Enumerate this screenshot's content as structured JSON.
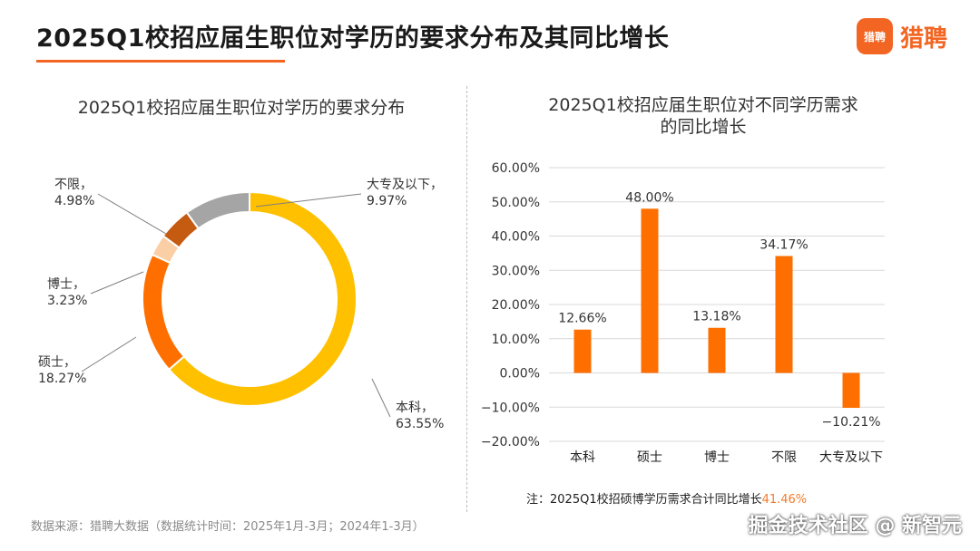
{
  "header": {
    "title": "2025Q1校招应届生职位对学历的要求分布及其同比增长",
    "logo_mark": "猎聘",
    "logo_text": "猎聘"
  },
  "chart_data": [
    {
      "type": "pie",
      "title": "2025Q1校招应届生职位对学历的要求分布",
      "style": "donut",
      "slices": [
        {
          "label": "本科",
          "value": 63.55,
          "display": "63.55%",
          "color": "#ffc000"
        },
        {
          "label": "硕士",
          "value": 18.27,
          "display": "18.27%",
          "color": "#ff6f00"
        },
        {
          "label": "博士",
          "value": 3.23,
          "display": "3.23%",
          "color": "#fbcfa5"
        },
        {
          "label": "不限",
          "value": 4.98,
          "display": "4.98%",
          "color": "#c55a11"
        },
        {
          "label": "大专及以下",
          "value": 9.97,
          "display": "9.97%",
          "color": "#a5a5a5"
        }
      ]
    },
    {
      "type": "bar",
      "title": [
        "2025Q1校招应届生职位对不同学历需求",
        "的同比增长"
      ],
      "categories": [
        "本科",
        "硕士",
        "博士",
        "不限",
        "大专及以下"
      ],
      "values": [
        12.66,
        48.0,
        13.18,
        34.17,
        -10.21
      ],
      "value_labels": [
        "12.66%",
        "48.00%",
        "13.18%",
        "34.17%",
        "−10.21%"
      ],
      "ylim": [
        -20,
        60
      ],
      "yticks": [
        60,
        50,
        40,
        30,
        20,
        10,
        0,
        -10,
        -20
      ],
      "ytick_labels": [
        "60.00%",
        "50.00%",
        "40.00%",
        "30.00%",
        "20.00%",
        "10.00%",
        "0.00%",
        "−10.00%",
        "−20.00%"
      ],
      "grid": true,
      "color": "#ff6f00"
    }
  ],
  "footnote": {
    "text": "注：2025Q1校招硕博学历需求合计同比增长",
    "value": "41.46%"
  },
  "source": "数据来源：猎聘大数据（数据统计时间：2025年1月-3月；2024年1-3月）",
  "watermark": "掘金技术社区 @ 新智元"
}
